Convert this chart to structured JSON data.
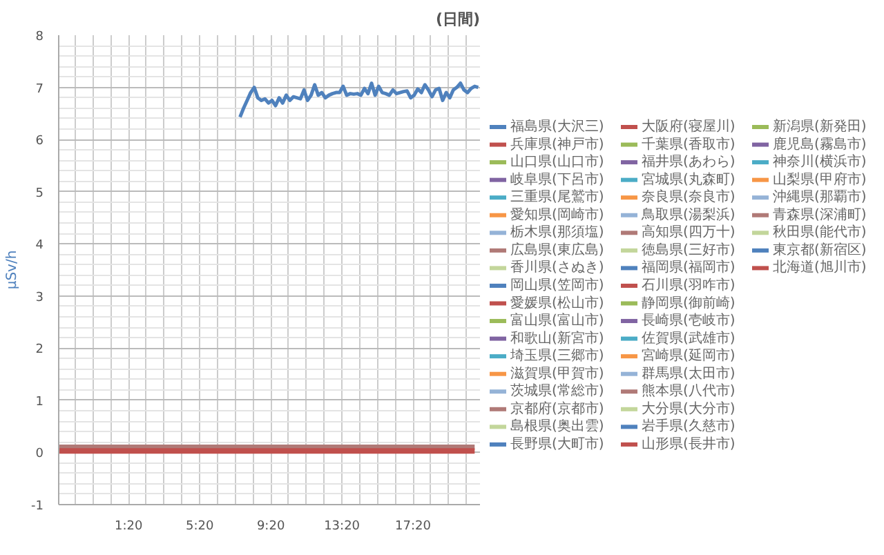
{
  "chart_data": {
    "type": "line",
    "title": "(日間)",
    "ylabel": "μSv/h",
    "xlim": [
      -2.6,
      21.1
    ],
    "xticks": [
      {
        "value": 1.3333,
        "label": "1:20"
      },
      {
        "value": 5.3333,
        "label": "5:20"
      },
      {
        "value": 9.3333,
        "label": "9:20"
      },
      {
        "value": 13.3333,
        "label": "13:20"
      },
      {
        "value": 17.3333,
        "label": "17:20"
      }
    ],
    "ylim": [
      -1,
      8
    ],
    "yticks": [
      -1,
      0,
      1,
      2,
      3,
      4,
      5,
      6,
      7,
      8
    ],
    "grid": true,
    "legend": "right",
    "marker": "none",
    "line_style": "solid",
    "series": [
      {
        "name": "福島県(大沢三)",
        "color": "#4f81bd",
        "x": [
          7.6,
          7.8,
          8.0,
          8.2,
          8.4,
          8.6,
          8.8,
          9.0,
          9.2,
          9.4,
          9.6,
          9.8,
          10.0,
          10.2,
          10.4,
          10.6,
          10.8,
          11.0,
          11.2,
          11.4,
          11.6,
          11.8,
          12.0,
          12.2,
          12.4,
          12.6,
          12.8,
          13.0,
          13.2,
          13.4,
          13.6,
          13.8,
          14.0,
          14.2,
          14.4,
          14.6,
          14.8,
          15.0,
          15.2,
          15.4,
          15.6,
          15.8,
          16.0,
          16.2,
          16.4,
          16.6,
          16.8,
          17.0,
          17.2,
          17.4,
          17.6,
          17.8,
          18.0,
          18.2,
          18.4,
          18.6,
          18.8,
          19.0,
          19.2,
          19.4,
          19.6,
          19.8,
          20.0,
          20.2,
          20.4,
          20.6,
          20.8,
          21.0
        ],
        "values": [
          6.43,
          6.6,
          6.75,
          6.9,
          7.0,
          6.8,
          6.75,
          6.78,
          6.7,
          6.75,
          6.65,
          6.8,
          6.7,
          6.85,
          6.75,
          6.82,
          6.8,
          6.78,
          6.95,
          6.75,
          6.85,
          7.05,
          6.85,
          6.9,
          6.8,
          6.85,
          6.88,
          6.9,
          6.9,
          7.02,
          6.85,
          6.88,
          6.87,
          6.88,
          6.85,
          6.98,
          6.88,
          7.08,
          6.85,
          7.02,
          6.9,
          6.88,
          6.85,
          6.95,
          6.88,
          6.9,
          6.92,
          6.93,
          6.8,
          6.85,
          6.97,
          6.9,
          7.05,
          6.95,
          6.82,
          6.95,
          6.98,
          6.75,
          6.9,
          6.8,
          6.95,
          7.0,
          7.08,
          6.95,
          6.9,
          6.98,
          7.02,
          7.0
        ]
      },
      {
        "name": "兵庫県(神戸市)",
        "color": "#c0504d",
        "values": [
          null,
          null
        ]
      },
      {
        "name": "山口県(山口市)",
        "color": "#9bbb59",
        "values": [
          null,
          null
        ]
      },
      {
        "name": "岐阜県(下呂市)",
        "color": "#8064a2",
        "values": [
          null,
          null
        ]
      },
      {
        "name": "三重県(尾鷲市)",
        "color": "#4bacc6",
        "values": [
          null,
          null
        ]
      },
      {
        "name": "愛知県(岡崎市)",
        "color": "#f79646",
        "values": [
          null,
          null
        ]
      },
      {
        "name": "栃木県(那須塩)",
        "color": "#95b3d7",
        "values": [
          null,
          null
        ]
      },
      {
        "name": "広島県(東広島)",
        "color": "#b07a77",
        "values": [
          null,
          null
        ]
      },
      {
        "name": "香川県(さぬき)",
        "color": "#c3d69b",
        "values": [
          null,
          null
        ]
      },
      {
        "name": "岡山県(笠岡市)",
        "color": "#4f81bd",
        "values": [
          null,
          null
        ]
      },
      {
        "name": "愛媛県(松山市)",
        "color": "#c0504d",
        "values": [
          null,
          null
        ]
      },
      {
        "name": "富山県(富山市)",
        "color": "#9bbb59",
        "values": [
          null,
          null
        ]
      },
      {
        "name": "和歌山(新宮市)",
        "color": "#8064a2",
        "values": [
          null,
          null
        ]
      },
      {
        "name": "埼玉県(三郷市)",
        "color": "#4bacc6",
        "values": [
          null,
          null
        ]
      },
      {
        "name": "滋賀県(甲賀市)",
        "color": "#f79646",
        "values": [
          null,
          null
        ]
      },
      {
        "name": "茨城県(常総市)",
        "color": "#95b3d7",
        "values": [
          null,
          null
        ]
      },
      {
        "name": "京都府(京都市)",
        "color": "#b07a77",
        "values": [
          null,
          null
        ]
      },
      {
        "name": "島根県(奥出雲)",
        "color": "#c3d69b",
        "values": [
          null,
          null
        ]
      },
      {
        "name": "長野県(大町市)",
        "color": "#4f81bd",
        "values": [
          null,
          null
        ]
      },
      {
        "name": "大阪府(寝屋川)",
        "color": "#c0504d",
        "values": [
          null,
          null
        ]
      },
      {
        "name": "千葉県(香取市)",
        "color": "#9bbb59",
        "values": [
          null,
          null
        ]
      },
      {
        "name": "福井県(あわら)",
        "color": "#8064a2",
        "values": [
          null,
          null
        ]
      },
      {
        "name": "宮城県(丸森町)",
        "color": "#4bacc6",
        "values": [
          null,
          null
        ]
      },
      {
        "name": "奈良県(奈良市)",
        "color": "#f79646",
        "values": [
          null,
          null
        ]
      },
      {
        "name": "鳥取県(湯梨浜)",
        "color": "#95b3d7",
        "values": [
          null,
          null
        ]
      },
      {
        "name": "高知県(四万十)",
        "color": "#b07a77",
        "values": [
          null,
          null
        ]
      },
      {
        "name": "徳島県(三好市)",
        "color": "#c3d69b",
        "values": [
          null,
          null
        ]
      },
      {
        "name": "福岡県(福岡市)",
        "color": "#4f81bd",
        "values": [
          null,
          null
        ]
      },
      {
        "name": "石川県(羽咋市)",
        "color": "#c0504d",
        "values": [
          null,
          null
        ]
      },
      {
        "name": "静岡県(御前崎)",
        "color": "#9bbb59",
        "values": [
          null,
          null
        ]
      },
      {
        "name": "長崎県(壱岐市)",
        "color": "#8064a2",
        "values": [
          null,
          null
        ]
      },
      {
        "name": "佐賀県(武雄市)",
        "color": "#4bacc6",
        "values": [
          null,
          null
        ]
      },
      {
        "name": "宮崎県(延岡市)",
        "color": "#f79646",
        "values": [
          null,
          null
        ]
      },
      {
        "name": "群馬県(太田市)",
        "color": "#95b3d7",
        "values": [
          null,
          null
        ]
      },
      {
        "name": "熊本県(八代市)",
        "color": "#b07a77",
        "values": [
          null,
          null
        ]
      },
      {
        "name": "大分県(大分市)",
        "color": "#c3d69b",
        "values": [
          null,
          null
        ]
      },
      {
        "name": "岩手県(久慈市)",
        "color": "#4f81bd",
        "values": [
          null,
          null
        ]
      },
      {
        "name": "山形県(長井市)",
        "color": "#c0504d",
        "values": [
          null,
          null
        ]
      },
      {
        "name": "新潟県(新発田)",
        "color": "#9bbb59",
        "values": [
          null,
          null
        ]
      },
      {
        "name": "鹿児島(霧島市)",
        "color": "#8064a2",
        "values": [
          null,
          null
        ]
      },
      {
        "name": "神奈川(横浜市)",
        "color": "#4bacc6",
        "values": [
          null,
          null
        ]
      },
      {
        "name": "山梨県(甲府市)",
        "color": "#f79646",
        "values": [
          null,
          null
        ]
      },
      {
        "name": "沖縄県(那覇市)",
        "color": "#95b3d7",
        "values": [
          null,
          null
        ]
      },
      {
        "name": "青森県(深浦町)",
        "color": "#b07a77",
        "x": [
          -2.6,
          20.8
        ],
        "values": [
          0.1,
          0.1
        ]
      },
      {
        "name": "秋田県(能代市)",
        "color": "#c3d69b",
        "values": [
          null,
          null
        ]
      },
      {
        "name": "東京都(新宿区)",
        "color": "#4f81bd",
        "values": [
          null,
          null
        ]
      },
      {
        "name": "北海道(旭川市)",
        "color": "#c0504d",
        "x": [
          -2.6,
          20.8
        ],
        "values": [
          0.03,
          0.03
        ]
      }
    ]
  }
}
